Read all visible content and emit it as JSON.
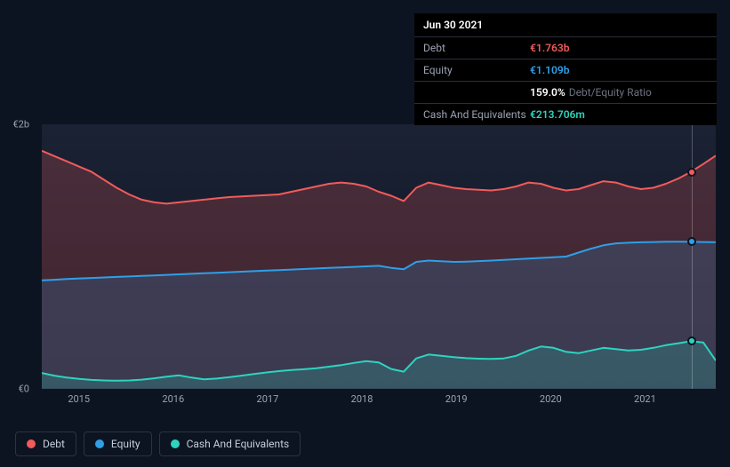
{
  "background_color": "#0d1421",
  "tooltip": {
    "date": "Jun 30 2021",
    "rows": [
      {
        "label": "Debt",
        "value": "€1.763b",
        "color": "#f15b5b"
      },
      {
        "label": "Equity",
        "value": "€1.109b",
        "color": "#2f9fe8"
      },
      {
        "label": "",
        "value": "159.0%",
        "color": "#ffffff",
        "suffix": "Debt/Equity Ratio"
      },
      {
        "label": "Cash And Equivalents",
        "value": "€213.706m",
        "color": "#2dd4bf"
      }
    ],
    "bg": "#000000",
    "border": "#2a2f3a",
    "label_color": "#9aa3b2"
  },
  "chart": {
    "type": "area",
    "plot_bg_gradient": [
      "#1b2234",
      "#0d1421"
    ],
    "ymin": 0,
    "ymax": 2000,
    "y_ticks": [
      {
        "v": 0,
        "label": "€0"
      },
      {
        "v": 2000,
        "label": "€2b"
      }
    ],
    "axis_color": "#9aa3b2",
    "axis_fontsize": 11,
    "x_labels": [
      "2015",
      "2016",
      "2017",
      "2018",
      "2019",
      "2020",
      "2021"
    ],
    "x_positions": [
      0.055,
      0.195,
      0.335,
      0.475,
      0.615,
      0.755,
      0.895
    ],
    "hover_x": 0.965,
    "series": [
      {
        "name": "Debt",
        "stroke": "#f15b5b",
        "fill": "#f15b5b",
        "fill_opacity": 0.22,
        "stroke_width": 2,
        "data": [
          1800,
          1760,
          1720,
          1680,
          1640,
          1580,
          1520,
          1470,
          1430,
          1410,
          1400,
          1410,
          1420,
          1430,
          1440,
          1450,
          1455,
          1460,
          1465,
          1470,
          1490,
          1510,
          1530,
          1550,
          1560,
          1550,
          1530,
          1490,
          1460,
          1420,
          1520,
          1560,
          1540,
          1520,
          1510,
          1505,
          1500,
          1510,
          1530,
          1560,
          1550,
          1520,
          1500,
          1510,
          1540,
          1570,
          1560,
          1530,
          1510,
          1520,
          1550,
          1590,
          1640,
          1700,
          1763
        ]
      },
      {
        "name": "Equity",
        "stroke": "#2f9fe8",
        "fill": "#2f9fe8",
        "fill_opacity": 0.18,
        "stroke_width": 2,
        "data": [
          820,
          825,
          830,
          835,
          838,
          842,
          846,
          850,
          854,
          858,
          862,
          866,
          870,
          874,
          878,
          882,
          886,
          890,
          894,
          898,
          902,
          906,
          910,
          914,
          918,
          922,
          926,
          930,
          915,
          905,
          960,
          970,
          965,
          960,
          962,
          966,
          970,
          975,
          980,
          985,
          990,
          995,
          1000,
          1030,
          1060,
          1085,
          1100,
          1105,
          1108,
          1110,
          1112,
          1113,
          1112,
          1110,
          1109
        ]
      },
      {
        "name": "Cash And Equivalents",
        "stroke": "#2dd4bf",
        "fill": "#2dd4bf",
        "fill_opacity": 0.2,
        "stroke_width": 2,
        "data": [
          120,
          100,
          85,
          75,
          68,
          64,
          62,
          64,
          70,
          80,
          92,
          102,
          85,
          72,
          78,
          88,
          100,
          112,
          124,
          134,
          142,
          148,
          156,
          168,
          180,
          196,
          210,
          200,
          150,
          130,
          230,
          260,
          250,
          240,
          232,
          228,
          226,
          230,
          250,
          290,
          320,
          310,
          280,
          270,
          290,
          310,
          300,
          290,
          295,
          310,
          330,
          345,
          360,
          350,
          214
        ]
      }
    ]
  },
  "legend": {
    "items": [
      {
        "label": "Debt",
        "color": "#f15b5b"
      },
      {
        "label": "Equity",
        "color": "#2f9fe8"
      },
      {
        "label": "Cash And Equivalents",
        "color": "#2dd4bf"
      }
    ],
    "border": "#2a3342",
    "text_color": "#c5cdd9",
    "fontsize": 12
  }
}
